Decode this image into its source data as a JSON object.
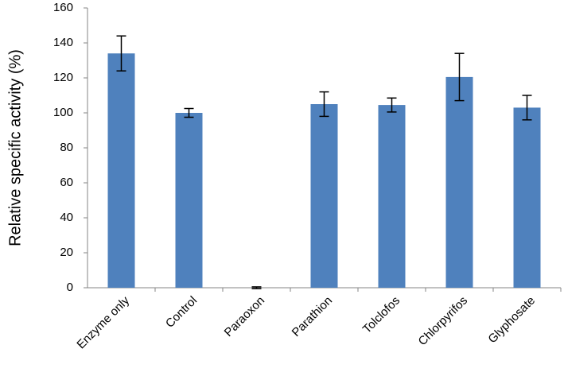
{
  "chart_data": {
    "type": "bar",
    "y_label": "Relative specific activity (%)",
    "categories": [
      "Enzyme only",
      "Control",
      "Paraoxon",
      "Parathion",
      "Tolclofos",
      "Chlorpyrifos",
      "Glyphosate"
    ],
    "values": [
      134,
      100,
      0,
      105,
      104.5,
      120.5,
      103
    ],
    "errors": [
      10,
      2.5,
      0.5,
      7,
      4,
      13.5,
      7
    ],
    "color": "#4f81bd",
    "ylim": [
      0,
      160
    ],
    "yticks": [
      0,
      20,
      40,
      60,
      80,
      100,
      120,
      140,
      160
    ],
    "grid": false
  }
}
